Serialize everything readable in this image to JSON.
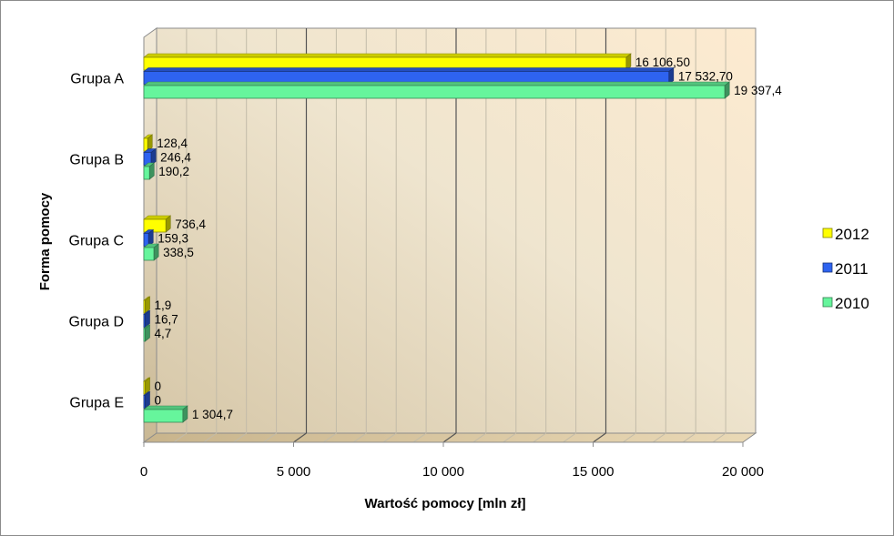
{
  "chart_data": {
    "type": "bar",
    "orientation": "horizontal",
    "three_d": true,
    "categories": [
      "Grupa A",
      "Grupa B",
      "Grupa C",
      "Grupa D",
      "Grupa E"
    ],
    "series": [
      {
        "name": "2012",
        "color": "#ffff00",
        "values": [
          16106.5,
          128.4,
          736.4,
          1.9,
          0
        ],
        "labels": [
          "16 106,50",
          "128,4",
          "736,4",
          "1,9",
          "0"
        ]
      },
      {
        "name": "2011",
        "color": "#2e63f0",
        "values": [
          17532.7,
          246.4,
          159.3,
          16.7,
          0
        ],
        "labels": [
          "17 532,70",
          "246,4",
          "159,3",
          "16,7",
          "0"
        ]
      },
      {
        "name": "2010",
        "color": "#66f59c",
        "values": [
          19397.4,
          190.2,
          338.5,
          4.7,
          1304.7
        ],
        "labels": [
          "19 397,4",
          "190,2",
          "338,5",
          "4,7",
          "1 304,7"
        ]
      }
    ],
    "xlabel": "Wartość pomocy [mln zł]",
    "ylabel": "Forma pomocy",
    "xlim": [
      0,
      20000
    ],
    "xticks": [
      0,
      5000,
      10000,
      15000,
      20000
    ],
    "xtick_labels": [
      "0",
      "5 000",
      "10 000",
      "15 000",
      "20 000"
    ],
    "grid": true,
    "legend_position": "right"
  }
}
